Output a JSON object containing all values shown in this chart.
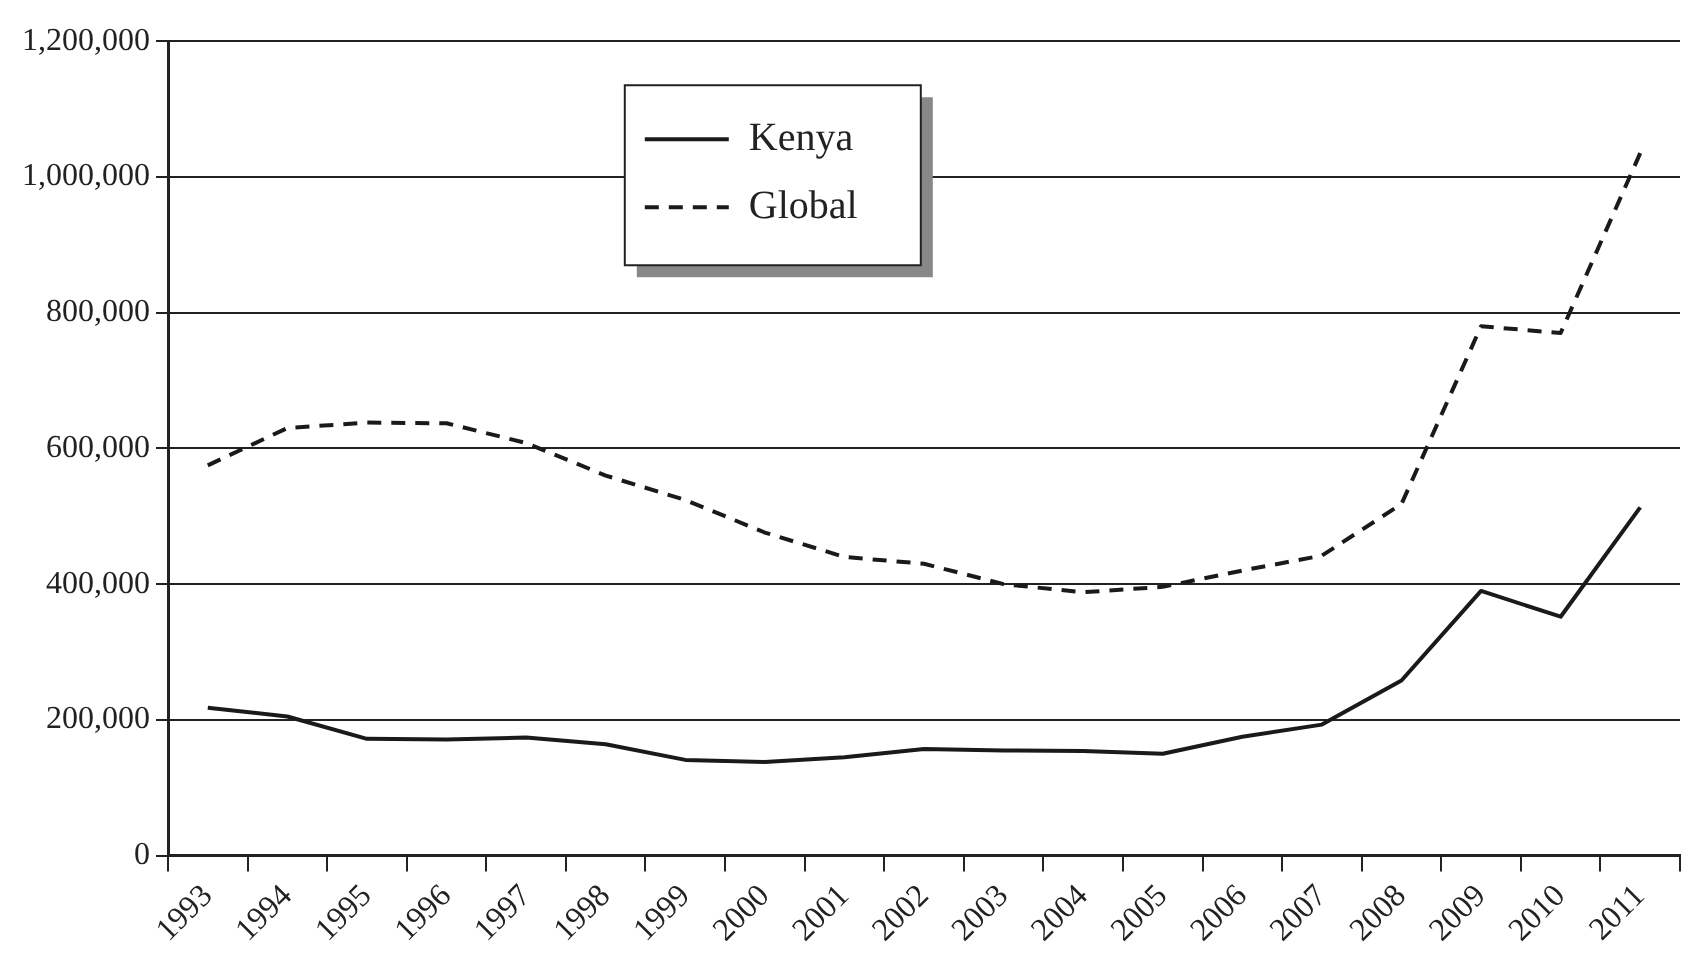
{
  "chart_data": {
    "type": "line",
    "categories": [
      "1993",
      "1994",
      "1995",
      "1996",
      "1997",
      "1998",
      "1999",
      "2000",
      "2001",
      "2002",
      "2003",
      "2004",
      "2005",
      "2006",
      "2007",
      "2008",
      "2009",
      "2010",
      "2011"
    ],
    "series": [
      {
        "name": "Kenya",
        "color": "#1a1a1a",
        "line_style": "solid",
        "values": [
          218000,
          205000,
          172000,
          171000,
          174000,
          164000,
          141000,
          138000,
          145000,
          157000,
          155000,
          154000,
          150000,
          175000,
          193000,
          258000,
          390000,
          352000,
          513000
        ]
      },
      {
        "name": "Global",
        "color": "#1a1a1a",
        "line_style": "dashed",
        "values": [
          575000,
          630000,
          638000,
          637000,
          608000,
          560000,
          524000,
          476000,
          440000,
          430000,
          400000,
          388000,
          396000,
          420000,
          442000,
          518000,
          780000,
          770000,
          1035000
        ]
      }
    ],
    "ylim": [
      0,
      1200000
    ],
    "yticks": [
      0,
      {
        "value": 200000,
        "label": "200,000"
      },
      {
        "value": 400000,
        "label": "400,000"
      },
      {
        "value": 600000,
        "label": "600,000"
      },
      {
        "value": 800000,
        "label": "800,000"
      },
      {
        "value": 1000000,
        "label": "1,000,000"
      },
      {
        "value": 1200000,
        "label": "1,200,000"
      }
    ],
    "grid": "y",
    "legend": "top",
    "marker": "none"
  }
}
